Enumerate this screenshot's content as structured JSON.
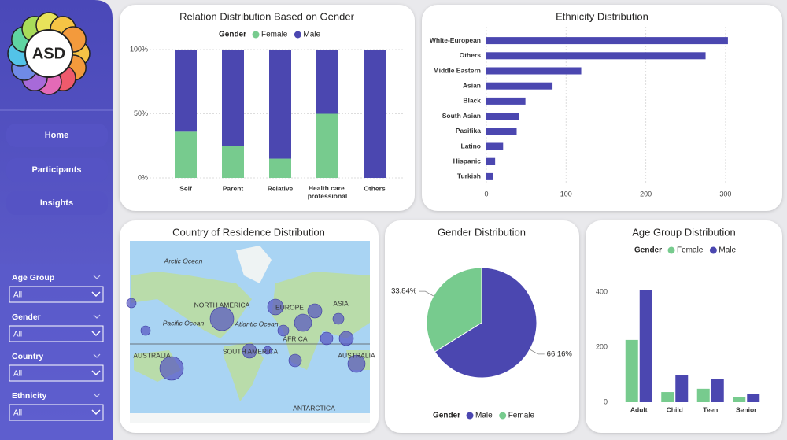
{
  "sidebar": {
    "logo": "ASD",
    "nav": [
      "Home",
      "Participants",
      "Insights"
    ],
    "filters": [
      {
        "label": "Age Group",
        "value": "All"
      },
      {
        "label": "Gender",
        "value": "All"
      },
      {
        "label": "Country",
        "value": "All"
      },
      {
        "label": "Ethnicity",
        "value": "All"
      }
    ]
  },
  "map": {
    "title": "Country of Residence Distribution",
    "labels": [
      "Arctic Ocean",
      "NORTH AMERICA",
      "Pacific Ocean",
      "Atlantic Ocean",
      "EUROPE",
      "ASIA",
      "AFRICA",
      "SOUTH AMERICA",
      "AUSTRALIA",
      "AUSTRALIA",
      "ANTARCTICA"
    ]
  },
  "chart_data": [
    {
      "type": "bar",
      "stacked": true,
      "title": "Relation Distribution Based on Gender",
      "legend_title": "Gender",
      "categories": [
        "Self",
        "Parent",
        "Relative",
        "Health care professional",
        "Others"
      ],
      "series": [
        {
          "name": "Female",
          "color": "#77cb8e",
          "values": [
            36,
            25,
            15,
            50,
            0
          ]
        },
        {
          "name": "Male",
          "color": "#4b47b0",
          "values": [
            64,
            75,
            85,
            50,
            100
          ]
        }
      ],
      "ylim": [
        0,
        100
      ],
      "yticks": [
        {
          "value": 0,
          "label": "0%"
        },
        {
          "value": 50,
          "label": "50%"
        },
        {
          "value": 100,
          "label": "100%"
        }
      ],
      "grid": true
    },
    {
      "type": "bar",
      "orientation": "horizontal",
      "title": "Ethnicity Distribution",
      "categories": [
        "White-European",
        "Others",
        "Middle Eastern",
        "Asian",
        "Black",
        "South Asian",
        "Pasifika",
        "Latino",
        "Hispanic",
        "Turkish"
      ],
      "values": [
        303,
        275,
        119,
        83,
        49,
        41,
        38,
        21,
        11,
        8
      ],
      "color": "#4b47b0",
      "xlim": [
        0,
        310
      ],
      "xticks": [
        0,
        100,
        200,
        300
      ],
      "grid": true
    },
    {
      "type": "pie",
      "title": "Gender Distribution",
      "legend_title": "Gender",
      "categories": [
        "Male",
        "Female"
      ],
      "values": [
        66.16,
        33.84
      ],
      "value_labels": [
        "66.16%",
        "33.84%"
      ],
      "colors": [
        "#4b47b0",
        "#77cb8e"
      ]
    },
    {
      "type": "bar",
      "title": "Age Group Distribution",
      "legend_title": "Gender",
      "categories": [
        "Adult",
        "Child",
        "Teen",
        "Senior"
      ],
      "series": [
        {
          "name": "Female",
          "color": "#77cb8e",
          "values": [
            226,
            37,
            49,
            20
          ]
        },
        {
          "name": "Male",
          "color": "#4b47b0",
          "values": [
            406,
            100,
            83,
            31
          ]
        }
      ],
      "ylim": [
        0,
        420
      ],
      "yticks": [
        0,
        200,
        400
      ],
      "grid": false
    }
  ]
}
